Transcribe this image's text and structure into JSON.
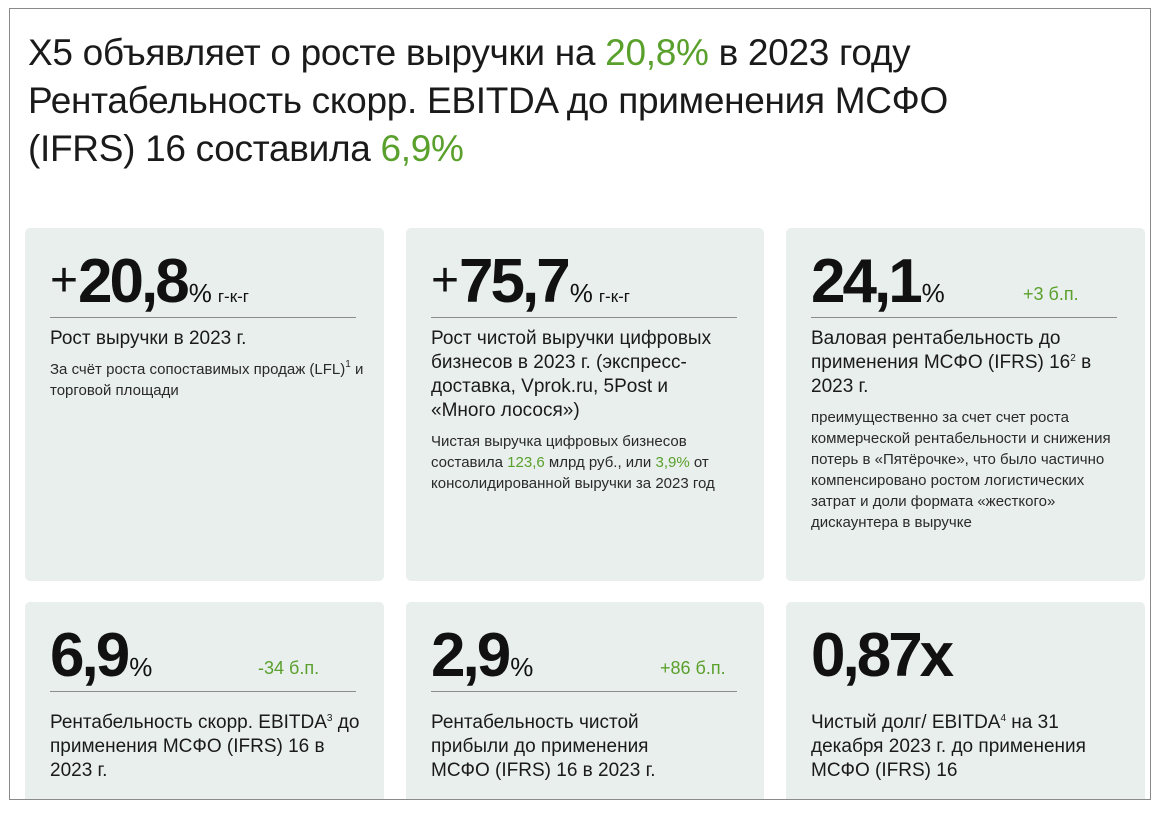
{
  "headline": {
    "line1_pre": "X5 объявляет о росте выручки на ",
    "line1_hl": "20,8%",
    "line1_post": " в 2023 году",
    "line2": "Рентабельность скорр. EBITDA до применения МСФО",
    "line3_pre": "(IFRS) 16 составила ",
    "line3_hl": "6,9%"
  },
  "cards": {
    "c1": {
      "sign": "+",
      "value": "20,8",
      "unit": "%",
      "suffix": "г-к-г",
      "title": "Рост выручки в 2023 г.",
      "note_a": "За счёт роста сопоставимых продаж (LFL)",
      "note_sup": "1",
      "note_b": " и торговой площади"
    },
    "c2": {
      "sign": "+",
      "value": "75,7",
      "unit": "%",
      "suffix": "г-к-г",
      "title": "Рост чистой выручки цифровых бизнесов в 2023 г. (экспресс-доставка, Vprok.ru, 5Post и «Много лосося»)",
      "note_a": "Чистая выручка цифровых бизнесов составила ",
      "note_hl1": "123,6",
      "note_b": " млрд руб., или ",
      "note_hl2": "3,9%",
      "note_c": " от консолидированной выручки за 2023 год"
    },
    "c3": {
      "value": "24,1",
      "unit": "%",
      "delta": "+3 б.п.",
      "title_a": "Валовая рентабельность до применения МСФО (IFRS) 16",
      "title_sup": "2",
      "title_b": " в 2023 г.",
      "note": "преимущественно за счет счет роста коммерческой рентабельности и снижения потерь в «Пятёрочке», что было частично компенсировано ростом логистических затрат и доли формата «жесткого» дискаунтера в выручке"
    },
    "c4": {
      "value": "6,9",
      "unit": "%",
      "delta": "-34 б.п.",
      "title_a": "Рентабельность скорр. EBITDA",
      "title_sup": "3",
      "title_b": " до применения МСФО (IFRS) 16 в 2023 г."
    },
    "c5": {
      "value": "2,9",
      "unit": "%",
      "delta": "+86 б.п.",
      "title": "Рентабельность чистой прибыли до применения МСФО (IFRS) 16 в 2023 г."
    },
    "c6": {
      "value": "0,87x",
      "title_a": "Чистый долг/ EBITDA",
      "title_sup": "4",
      "title_b": " на 31 декабря 2023 г. до применения МСФО (IFRS) 16"
    }
  },
  "colors": {
    "accent_green": "#5aa02c",
    "card_bg": "#e9efed"
  }
}
